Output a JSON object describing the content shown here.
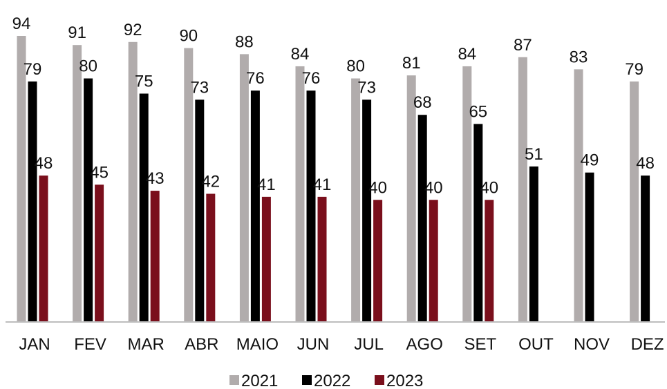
{
  "chart_data": {
    "type": "bar",
    "categories": [
      "JAN",
      "FEV",
      "MAR",
      "ABR",
      "MAIO",
      "JUN",
      "JUL",
      "AGO",
      "SET",
      "OUT",
      "NOV",
      "DEZ"
    ],
    "series": [
      {
        "name": "2021",
        "color": "#b1acac",
        "values": [
          94,
          91,
          92,
          90,
          88,
          84,
          80,
          81,
          84,
          87,
          83,
          79
        ]
      },
      {
        "name": "2022",
        "color": "#000000",
        "values": [
          79,
          80,
          75,
          73,
          76,
          76,
          73,
          68,
          65,
          51,
          49,
          48
        ]
      },
      {
        "name": "2023",
        "color": "#7a0f1c",
        "values": [
          48,
          45,
          43,
          42,
          41,
          41,
          40,
          40,
          40,
          null,
          null,
          null
        ]
      }
    ],
    "title": "",
    "xlabel": "",
    "ylabel": "",
    "ylim": [
      0,
      94
    ],
    "grid": false,
    "legend_position": "bottom"
  }
}
